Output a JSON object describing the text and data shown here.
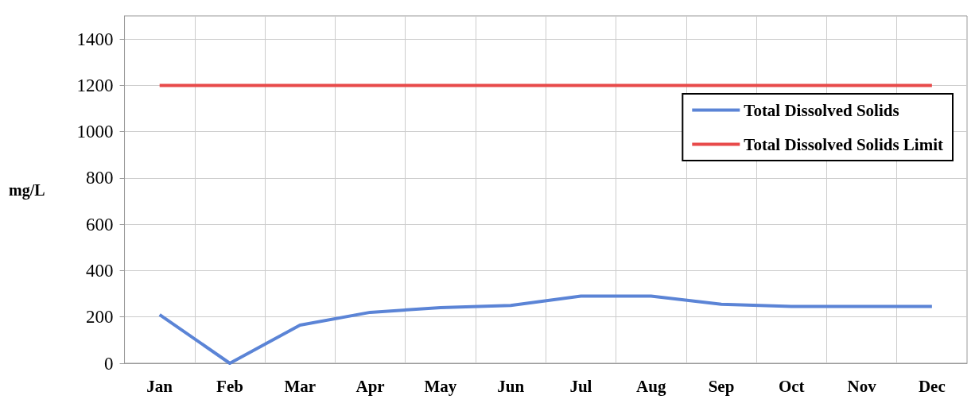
{
  "chart_data": {
    "type": "line",
    "ylabel": "mg/L",
    "categories": [
      "Jan",
      "Feb",
      "Mar",
      "Apr",
      "May",
      "Jun",
      "Jul",
      "Aug",
      "Sep",
      "Oct",
      "Nov",
      "Dec"
    ],
    "series": [
      {
        "name": "Total Dissolved Solids",
        "color": "#5b84d6",
        "values": [
          210,
          0,
          165,
          220,
          240,
          250,
          290,
          290,
          255,
          245,
          245,
          245
        ]
      },
      {
        "name": "Total Dissolved Solids Limit",
        "color": "#e84a4a",
        "values": [
          1200,
          1200,
          1200,
          1200,
          1200,
          1200,
          1200,
          1200,
          1200,
          1200,
          1200,
          1200
        ]
      }
    ],
    "ylim": [
      0,
      1500
    ],
    "yticks": [
      0,
      200,
      400,
      600,
      800,
      1000,
      1200,
      1400
    ],
    "grid": true,
    "legend": "top right",
    "marker": "none",
    "line_style": "solid"
  }
}
